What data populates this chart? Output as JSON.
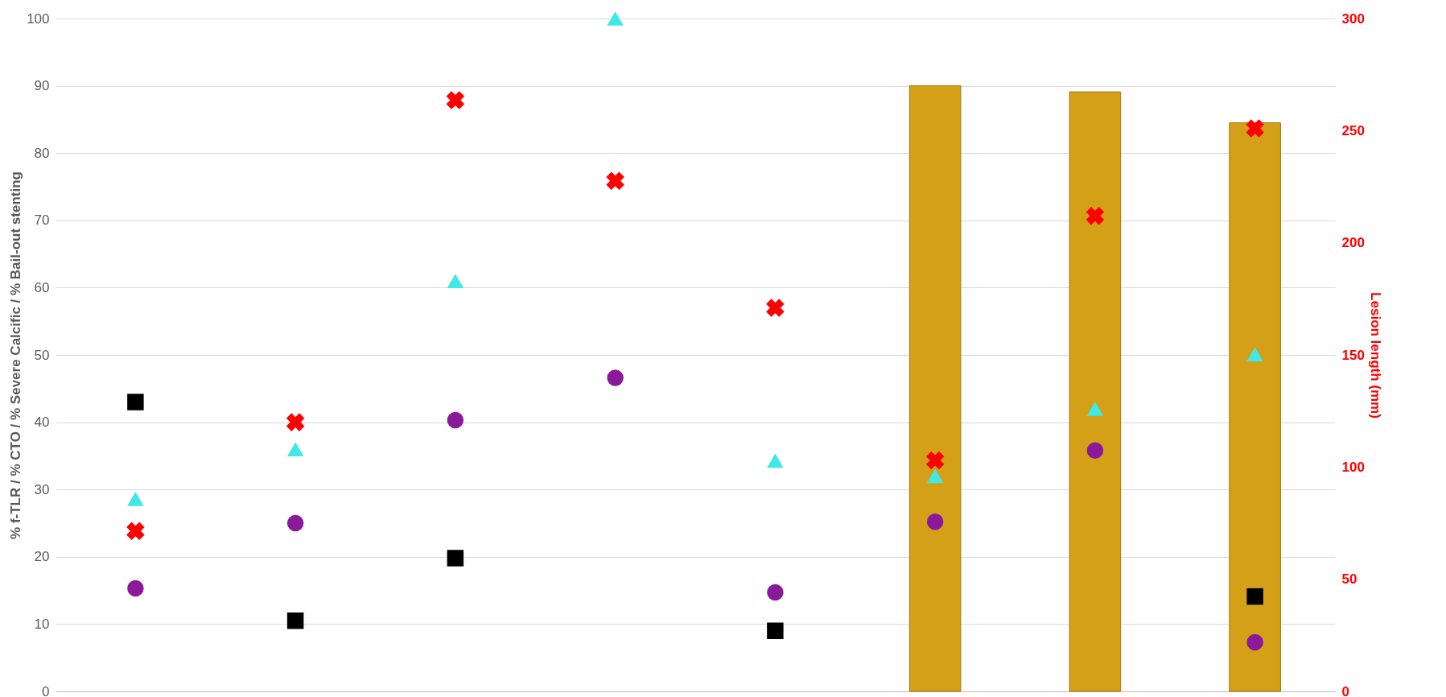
{
  "chart_data": {
    "type": "scatter",
    "ylabel": "% f-TLR / % CTO / % Severe Calcific / % Bail-out stenting",
    "y2label": "Lesion length (mm)",
    "categories": [
      null,
      null,
      null,
      null,
      null,
      null,
      null,
      null
    ],
    "ylim": [
      0,
      100
    ],
    "yticks": [
      0,
      10,
      20,
      30,
      40,
      50,
      60,
      70,
      80,
      90,
      100
    ],
    "y2lim": [
      0,
      300
    ],
    "y2ticks": [
      0,
      50,
      100,
      150,
      200,
      250,
      300
    ],
    "grid": "y",
    "series": [
      {
        "type": "bar",
        "color": "#d4a017",
        "values": [
          null,
          null,
          null,
          null,
          null,
          90,
          89.1,
          84.5
        ]
      },
      {
        "marker": "triangle",
        "color": "#40e8e8",
        "values": [
          28.6,
          36,
          61,
          100,
          34.3,
          32,
          42,
          50.1
        ]
      },
      {
        "marker": "cross",
        "color": "#ff0000",
        "axis": "y2",
        "values": [
          71.5,
          120,
          263.6,
          227.6,
          171,
          103,
          212,
          251
        ]
      },
      {
        "marker": "circle",
        "color": "#8b1a9b",
        "values": [
          15.3,
          25,
          40.3,
          46.6,
          14.7,
          25.2,
          35.8,
          7.3
        ]
      },
      {
        "marker": "square",
        "color": "#000000",
        "values": [
          43,
          10.5,
          19.8,
          null,
          9,
          null,
          null,
          14.1
        ]
      }
    ]
  }
}
